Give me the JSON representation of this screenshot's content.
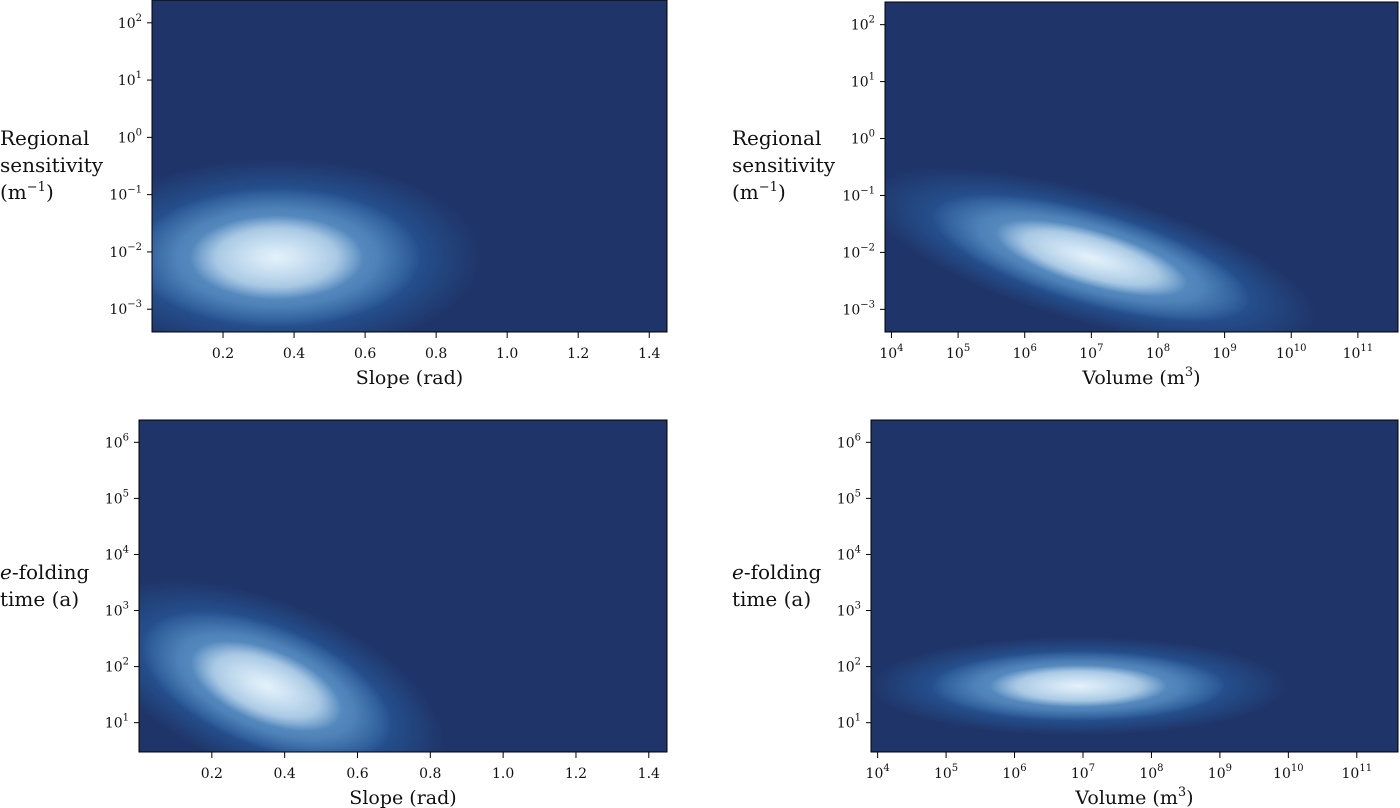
{
  "chart_data": [
    {
      "type": "heatmap",
      "id": "sens_slope",
      "xscale": "linear",
      "yscale": "log",
      "xlim": [
        0.0,
        1.45
      ],
      "ylim": [
        0.0004,
        250
      ],
      "xticks": [
        {
          "value": 0.2,
          "label": "0.2"
        },
        {
          "value": 0.4,
          "label": "0.4"
        },
        {
          "value": 0.6,
          "label": "0.6"
        },
        {
          "value": 0.8,
          "label": "0.8"
        },
        {
          "value": 1.0,
          "label": "1.0"
        },
        {
          "value": 1.2,
          "label": "1.2"
        },
        {
          "value": 1.4,
          "label": "1.4"
        }
      ],
      "yticks": [
        {
          "value": 0.001,
          "base": "10",
          "exp": "−3"
        },
        {
          "value": 0.01,
          "base": "10",
          "exp": "−2"
        },
        {
          "value": 0.1,
          "base": "10",
          "exp": "−1"
        },
        {
          "value": 1,
          "base": "10",
          "exp": "0"
        },
        {
          "value": 10,
          "base": "10",
          "exp": "1"
        },
        {
          "value": 100,
          "base": "10",
          "exp": "2"
        }
      ],
      "xlabel": {
        "base": "Slope (rad)",
        "sup": ""
      },
      "ylabel": [
        "Regional",
        "sensitivity",
        "(m−1)"
      ],
      "density_peak": {
        "x": 0.38,
        "y": 0.008
      },
      "colormap": [
        "#1f3468",
        "#2b6cb3",
        "#7fb4dd",
        "#e4f1fa"
      ]
    },
    {
      "type": "heatmap",
      "id": "sens_volume",
      "xscale": "log",
      "yscale": "log",
      "xlim": [
        8000,
        400000000000
      ],
      "ylim": [
        0.0004,
        250
      ],
      "xticks": [
        {
          "value": 10000,
          "base": "10",
          "exp": "4"
        },
        {
          "value": 100000,
          "base": "10",
          "exp": "5"
        },
        {
          "value": 1000000,
          "base": "10",
          "exp": "6"
        },
        {
          "value": 10000000,
          "base": "10",
          "exp": "7"
        },
        {
          "value": 100000000,
          "base": "10",
          "exp": "8"
        },
        {
          "value": 1000000000,
          "base": "10",
          "exp": "9"
        },
        {
          "value": 10000000000,
          "base": "10",
          "exp": "10"
        },
        {
          "value": 100000000000,
          "base": "10",
          "exp": "11"
        }
      ],
      "yticks": [
        {
          "value": 0.001,
          "base": "10",
          "exp": "−3"
        },
        {
          "value": 0.01,
          "base": "10",
          "exp": "−2"
        },
        {
          "value": 0.1,
          "base": "10",
          "exp": "−1"
        },
        {
          "value": 1,
          "base": "10",
          "exp": "0"
        },
        {
          "value": 10,
          "base": "10",
          "exp": "1"
        },
        {
          "value": 100,
          "base": "10",
          "exp": "2"
        }
      ],
      "xlabel": {
        "base": "Volume (m",
        "sup": "3",
        "tail": ")"
      },
      "ylabel": [
        "Regional",
        "sensitivity",
        "(m−1)"
      ],
      "density_peak": {
        "x": 10000000,
        "y": 0.008
      },
      "colormap": [
        "#1f3468",
        "#2b6cb3",
        "#7fb4dd",
        "#e4f1fa"
      ]
    },
    {
      "type": "heatmap",
      "id": "efold_slope",
      "xscale": "linear",
      "yscale": "log",
      "xlim": [
        0.0,
        1.45
      ],
      "ylim": [
        3,
        2500000
      ],
      "xticks": [
        {
          "value": 0.2,
          "label": "0.2"
        },
        {
          "value": 0.4,
          "label": "0.4"
        },
        {
          "value": 0.6,
          "label": "0.6"
        },
        {
          "value": 0.8,
          "label": "0.8"
        },
        {
          "value": 1.0,
          "label": "1.0"
        },
        {
          "value": 1.2,
          "label": "1.2"
        },
        {
          "value": 1.4,
          "label": "1.4"
        }
      ],
      "yticks": [
        {
          "value": 10,
          "base": "10",
          "exp": "1"
        },
        {
          "value": 100,
          "base": "10",
          "exp": "2"
        },
        {
          "value": 1000,
          "base": "10",
          "exp": "3"
        },
        {
          "value": 10000,
          "base": "10",
          "exp": "4"
        },
        {
          "value": 100000,
          "base": "10",
          "exp": "5"
        },
        {
          "value": 1000000,
          "base": "10",
          "exp": "6"
        }
      ],
      "xlabel": {
        "base": "Slope (rad)",
        "sup": ""
      },
      "ylabel": [
        "e-folding",
        "time (a)"
      ],
      "density_peak": {
        "x": 0.35,
        "y": 45
      },
      "colormap": [
        "#1f3468",
        "#2b6cb3",
        "#7fb4dd",
        "#e4f1fa"
      ]
    },
    {
      "type": "heatmap",
      "id": "efold_volume",
      "xscale": "log",
      "yscale": "log",
      "xlim": [
        8000,
        400000000000
      ],
      "ylim": [
        3,
        2500000
      ],
      "xticks": [
        {
          "value": 10000,
          "base": "10",
          "exp": "4"
        },
        {
          "value": 100000,
          "base": "10",
          "exp": "5"
        },
        {
          "value": 1000000,
          "base": "10",
          "exp": "6"
        },
        {
          "value": 10000000,
          "base": "10",
          "exp": "7"
        },
        {
          "value": 100000000,
          "base": "10",
          "exp": "8"
        },
        {
          "value": 1000000000,
          "base": "10",
          "exp": "9"
        },
        {
          "value": 10000000000,
          "base": "10",
          "exp": "10"
        },
        {
          "value": 100000000000,
          "base": "10",
          "exp": "11"
        }
      ],
      "yticks": [
        {
          "value": 10,
          "base": "10",
          "exp": "1"
        },
        {
          "value": 100,
          "base": "10",
          "exp": "2"
        },
        {
          "value": 1000,
          "base": "10",
          "exp": "3"
        },
        {
          "value": 10000,
          "base": "10",
          "exp": "4"
        },
        {
          "value": 100000,
          "base": "10",
          "exp": "5"
        },
        {
          "value": 1000000,
          "base": "10",
          "exp": "6"
        }
      ],
      "xlabel": {
        "base": "Volume (m",
        "sup": "3",
        "tail": ")"
      },
      "ylabel": [
        "e-folding",
        "time (a)"
      ],
      "density_peak": {
        "x": 6000000,
        "y": 45
      },
      "colormap": [
        "#1f3468",
        "#2b6cb3",
        "#7fb4dd",
        "#e4f1fa"
      ]
    }
  ]
}
